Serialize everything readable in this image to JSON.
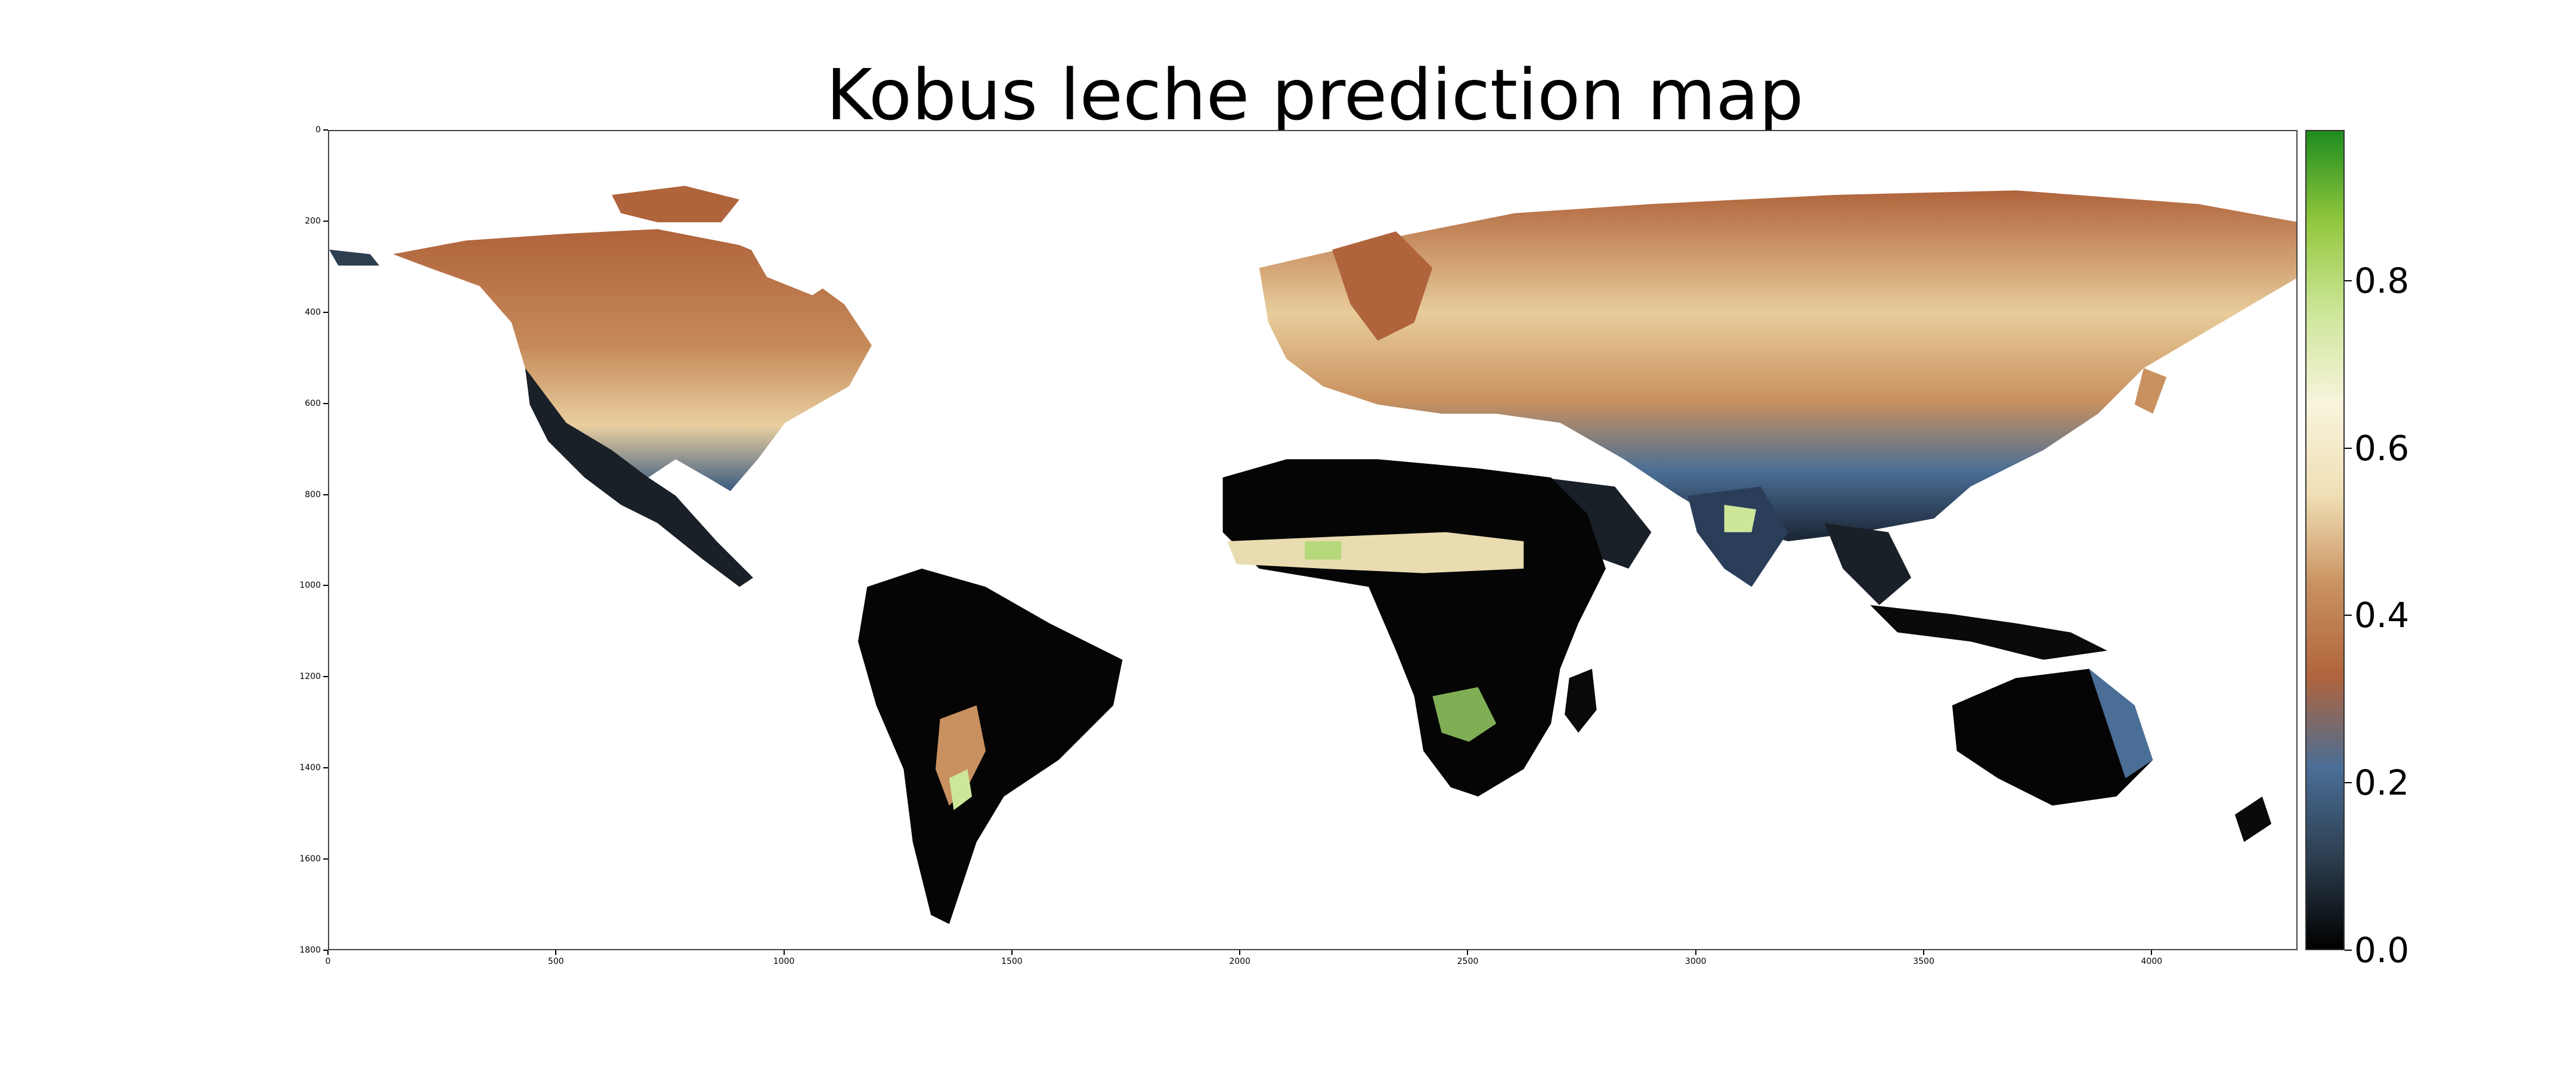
{
  "title": "Kobus leche prediction map",
  "colors": {
    "colormap_stops": [
      "#000000",
      "#2c3e50",
      "#4a6e96",
      "#b0643c",
      "#c9915f",
      "#f0dfb6",
      "#f8f4dc",
      "#cde69a",
      "#93c83e",
      "#1e8c1e"
    ],
    "background": "#ffffff"
  },
  "chart_data": {
    "type": "heatmap",
    "title": "Kobus leche prediction map",
    "description_of_values": "per-pixel prediction score",
    "x_ticks": [
      0,
      500,
      1000,
      1500,
      2000,
      2500,
      3000,
      3500,
      4000
    ],
    "y_ticks": [
      0,
      200,
      400,
      600,
      800,
      1000,
      1200,
      1400,
      1600,
      1800
    ],
    "xlim": [
      0,
      4320
    ],
    "ylim": [
      1800,
      0
    ],
    "colorbar": {
      "range": [
        0.0,
        0.98
      ],
      "ticks": [
        0.0,
        0.2,
        0.4,
        0.6,
        0.8
      ],
      "tick_labels": [
        "0.0",
        "0.2",
        "0.4",
        "0.6",
        "0.8"
      ]
    }
  }
}
